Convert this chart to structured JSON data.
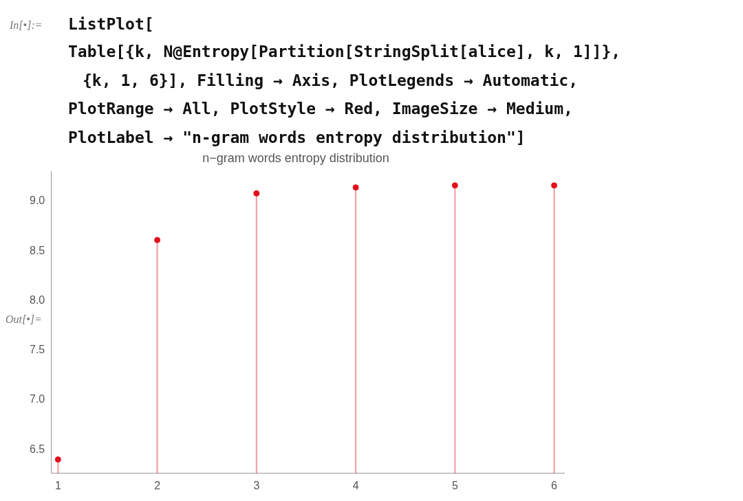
{
  "chart_data": {
    "type": "lollipop",
    "title": "n−gram words entropy distribution",
    "x": [
      1,
      2,
      3,
      4,
      5,
      6
    ],
    "values": [
      6.4,
      8.61,
      9.08,
      9.14,
      9.16,
      9.16
    ],
    "color": "#e3101b",
    "xlim": [
      0.93,
      6.1
    ],
    "xticks": [
      1,
      2,
      3,
      4,
      5,
      6
    ],
    "ylim": [
      6.26,
      9.3
    ],
    "yticks": [
      {
        "value": 6.5,
        "label": "6.5"
      },
      {
        "value": 7.0,
        "label": "7.0"
      },
      {
        "value": 7.5,
        "label": "7.5"
      },
      {
        "value": 8.0,
        "label": "8.0"
      },
      {
        "value": 8.5,
        "label": "8.5"
      },
      {
        "value": 9.0,
        "label": "9.0"
      }
    ],
    "grid": false,
    "legend": false,
    "marker": "circle",
    "annotations": [
      "In[•]:=",
      "ListPlot[",
      "Table[{k, N@Entropy[Partition[StringSplit[alice], k, 1]]},",
      "{k, 1, 6}], Filling → Axis, PlotLegends → Automatic,",
      "PlotRange → All, PlotStyle → Red, ImageSize → Medium,",
      "PlotLabel → \"n-gram words entropy distribution\"]",
      "Out[•]="
    ]
  }
}
